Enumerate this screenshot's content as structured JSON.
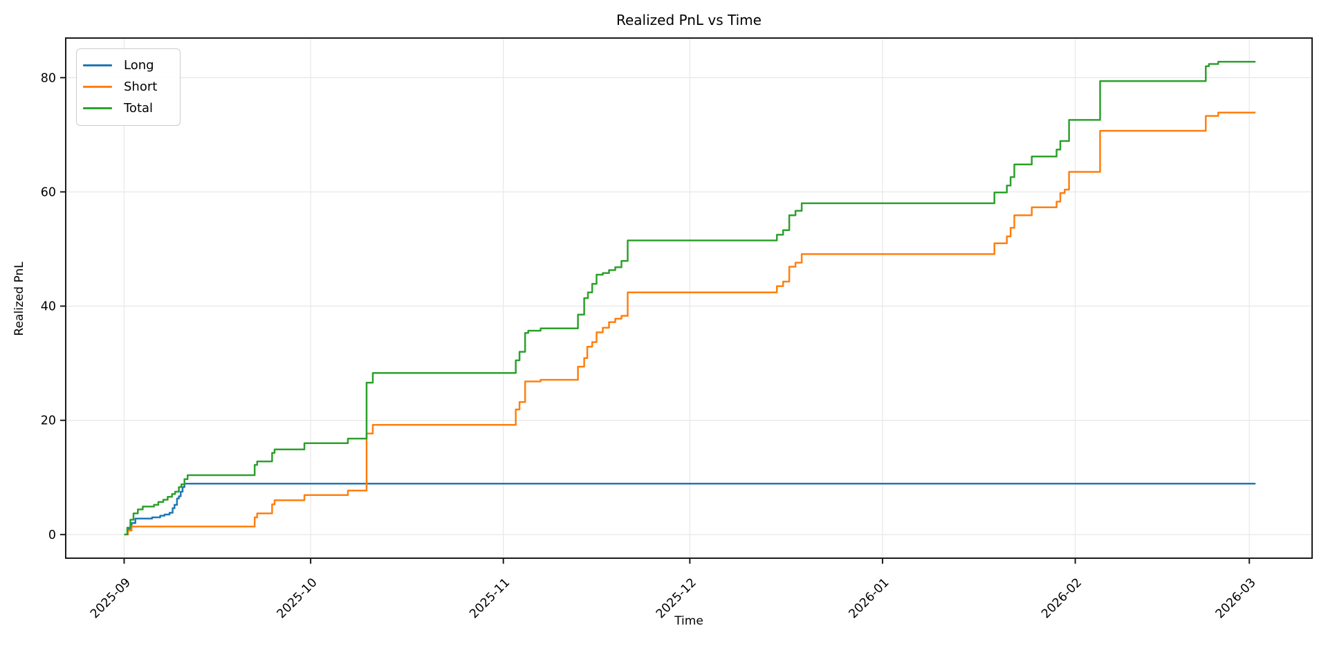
{
  "chart_data": {
    "type": "line",
    "title": "Realized PnL vs Time",
    "xlabel": "Time",
    "ylabel": "Realized PnL",
    "x_unit": "days since 2025-09-01",
    "xlim": [
      -9.4,
      191.1
    ],
    "ylim": [
      -4.14,
      86.94
    ],
    "grid": true,
    "legend_position": "upper-left",
    "line_style": "step-after",
    "x_ticks": {
      "days": [
        0,
        30,
        61,
        91,
        122,
        153,
        181
      ],
      "labels": [
        "2025-09",
        "2025-10",
        "2025-11",
        "2025-12",
        "2026-01",
        "2026-02",
        "2026-03"
      ]
    },
    "y_ticks": [
      0,
      20,
      40,
      60,
      80
    ],
    "series": [
      {
        "name": "Long",
        "color": "#1f77b4",
        "points": [
          [
            0,
            0
          ],
          [
            0.6,
            1.0
          ],
          [
            1.2,
            2.0
          ],
          [
            1.8,
            2.8
          ],
          [
            4.5,
            3.0
          ],
          [
            5.8,
            3.3
          ],
          [
            6.5,
            3.5
          ],
          [
            7.3,
            3.8
          ],
          [
            7.8,
            4.6
          ],
          [
            8.1,
            5.2
          ],
          [
            8.5,
            6.3
          ],
          [
            8.8,
            6.7
          ],
          [
            9.1,
            7.5
          ],
          [
            9.4,
            8.3
          ],
          [
            9.7,
            8.9
          ],
          [
            182,
            8.9
          ]
        ]
      },
      {
        "name": "Short",
        "color": "#ff7f0e",
        "points": [
          [
            0,
            0
          ],
          [
            0.6,
            0.7
          ],
          [
            1.2,
            1.4
          ],
          [
            21,
            3.0
          ],
          [
            21.4,
            3.7
          ],
          [
            23.8,
            5.3
          ],
          [
            24.2,
            6.0
          ],
          [
            29,
            6.9
          ],
          [
            36,
            7.7
          ],
          [
            39,
            17.7
          ],
          [
            40,
            19.2
          ],
          [
            63,
            21.9
          ],
          [
            63.6,
            23.2
          ],
          [
            64.5,
            26.8
          ],
          [
            67,
            27.1
          ],
          [
            73,
            29.4
          ],
          [
            74,
            30.9
          ],
          [
            74.5,
            32.9
          ],
          [
            75.3,
            33.7
          ],
          [
            76,
            35.4
          ],
          [
            77,
            36.2
          ],
          [
            78,
            37.2
          ],
          [
            79,
            37.8
          ],
          [
            80,
            38.3
          ],
          [
            81,
            42.4
          ],
          [
            105,
            43.5
          ],
          [
            106,
            44.3
          ],
          [
            107,
            46.9
          ],
          [
            108,
            47.6
          ],
          [
            109,
            49.1
          ],
          [
            140,
            51.0
          ],
          [
            142,
            52.2
          ],
          [
            142.6,
            53.7
          ],
          [
            143.2,
            55.9
          ],
          [
            146,
            57.3
          ],
          [
            150,
            58.3
          ],
          [
            150.6,
            59.8
          ],
          [
            151.3,
            60.4
          ],
          [
            152,
            63.5
          ],
          [
            157,
            70.7
          ],
          [
            174,
            73.3
          ],
          [
            176,
            73.9
          ],
          [
            182,
            73.9
          ]
        ]
      },
      {
        "name": "Total",
        "color": "#2ca02c",
        "points": [
          [
            0,
            0
          ],
          [
            0.5,
            1.2
          ],
          [
            1,
            2.6
          ],
          [
            1.5,
            3.7
          ],
          [
            2.2,
            4.4
          ],
          [
            3,
            4.9
          ],
          [
            4.8,
            5.2
          ],
          [
            5.5,
            5.7
          ],
          [
            6.3,
            6.1
          ],
          [
            7,
            6.6
          ],
          [
            7.7,
            7.1
          ],
          [
            8.2,
            7.5
          ],
          [
            8.8,
            8.3
          ],
          [
            9.2,
            8.8
          ],
          [
            9.7,
            9.7
          ],
          [
            10.2,
            10.4
          ],
          [
            21,
            12.2
          ],
          [
            21.4,
            12.8
          ],
          [
            23.8,
            14.3
          ],
          [
            24.2,
            14.9
          ],
          [
            29,
            16.0
          ],
          [
            36,
            16.8
          ],
          [
            39,
            26.6
          ],
          [
            40,
            28.3
          ],
          [
            63,
            30.5
          ],
          [
            63.6,
            32.0
          ],
          [
            64.5,
            35.3
          ],
          [
            65,
            35.7
          ],
          [
            67,
            36.1
          ],
          [
            73,
            38.5
          ],
          [
            74,
            41.4
          ],
          [
            74.6,
            42.4
          ],
          [
            75.3,
            43.9
          ],
          [
            76,
            45.5
          ],
          [
            77,
            45.8
          ],
          [
            78,
            46.3
          ],
          [
            79,
            46.8
          ],
          [
            80,
            47.9
          ],
          [
            81,
            51.5
          ],
          [
            105,
            52.5
          ],
          [
            106,
            53.3
          ],
          [
            107,
            55.9
          ],
          [
            108,
            56.7
          ],
          [
            109,
            58.0
          ],
          [
            140,
            59.9
          ],
          [
            142,
            61.1
          ],
          [
            142.6,
            62.6
          ],
          [
            143.2,
            64.8
          ],
          [
            146,
            66.2
          ],
          [
            150,
            67.4
          ],
          [
            150.6,
            68.9
          ],
          [
            152,
            72.6
          ],
          [
            157,
            79.4
          ],
          [
            174,
            82.0
          ],
          [
            174.5,
            82.4
          ],
          [
            176,
            82.8
          ],
          [
            182,
            82.8
          ]
        ]
      }
    ]
  }
}
